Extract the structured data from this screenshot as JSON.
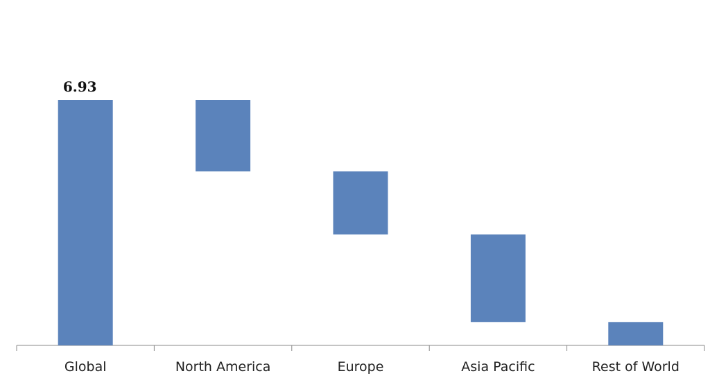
{
  "chart_data": {
    "type": "waterfall",
    "categories": [
      "Global",
      "North America",
      "Europe",
      "Asia Pacific",
      "Rest of World"
    ],
    "values": [
      6.93,
      -2.02,
      -1.78,
      -2.47,
      -0.66
    ],
    "measures": [
      "absolute",
      "relative",
      "relative",
      "relative",
      "relative"
    ],
    "label_absolute": true,
    "color": "#5b83bb"
  }
}
